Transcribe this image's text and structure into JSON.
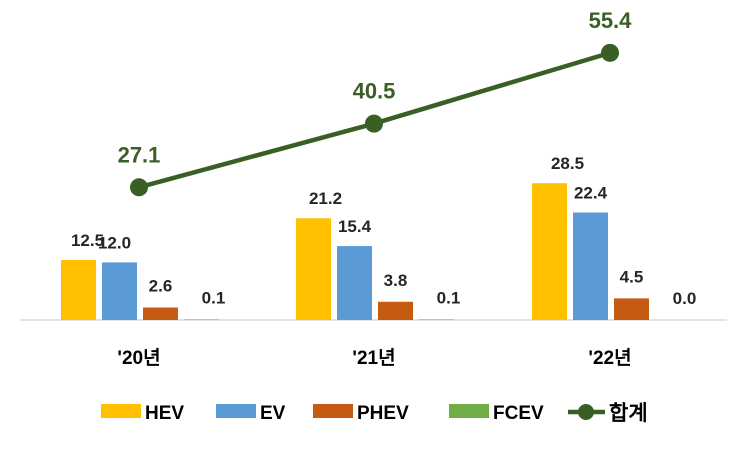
{
  "chart_data": {
    "type": "bar",
    "categories": [
      "'20년",
      "'21년",
      "'22년"
    ],
    "series": [
      {
        "name": "HEV",
        "values": [
          12.5,
          21.2,
          28.5
        ],
        "color": "#FFC000"
      },
      {
        "name": "EV",
        "values": [
          12.0,
          15.4,
          22.4
        ],
        "color": "#5B9BD5"
      },
      {
        "name": "PHEV",
        "values": [
          2.6,
          3.8,
          4.5
        ],
        "color": "#C55A11"
      },
      {
        "name": "FCEV",
        "values": [
          0.1,
          0.1,
          0.0
        ],
        "color": "#70AD47"
      }
    ],
    "value_labels": [
      [
        "12.5",
        "21.2",
        "28.5"
      ],
      [
        "12.0",
        "15.4",
        "22.4"
      ],
      [
        "2.6",
        "3.8",
        "4.5"
      ],
      [
        "0.1",
        "0.1",
        "0.0"
      ]
    ],
    "total_line": {
      "name": "합계",
      "values": [
        27.1,
        40.5,
        55.4
      ],
      "labels": [
        "27.1",
        "40.5",
        "55.4"
      ],
      "color": "#3A5F24"
    },
    "title": "",
    "xlabel": "",
    "ylabel": "",
    "legend_position": "bottom",
    "label_color": "#262626"
  }
}
